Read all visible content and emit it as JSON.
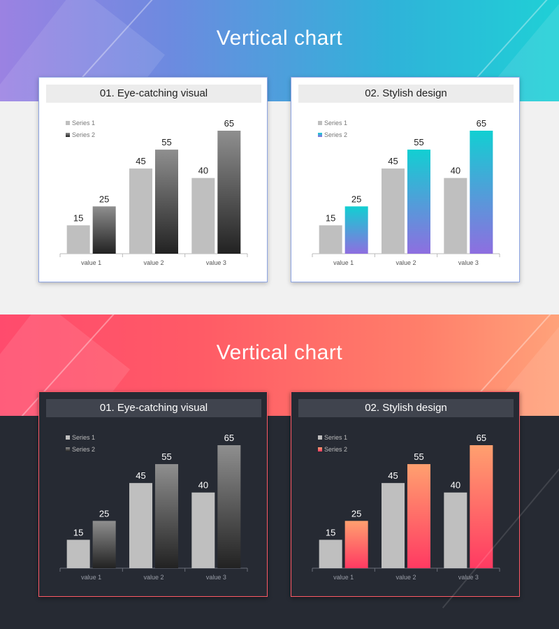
{
  "sections": [
    {
      "id": "light",
      "title": "Vertical chart",
      "cards": [
        {
          "header": "01. Eye-catching visual",
          "chart_data": {
            "type": "bar",
            "categories": [
              "value 1",
              "value 2",
              "value 3"
            ],
            "series": [
              {
                "name": "Series 1",
                "values": [
                  15,
                  45,
                  40
                ],
                "color": "#bfbfbf"
              },
              {
                "name": "Series 2",
                "values": [
                  25,
                  55,
                  65
                ],
                "gradient": [
                  "#8f8f8f",
                  "#222222"
                ]
              }
            ],
            "ylim": [
              0,
              65
            ],
            "legend": "top-left",
            "grid": false
          }
        },
        {
          "header": "02. Stylish design",
          "chart_data": {
            "type": "bar",
            "categories": [
              "value 1",
              "value 2",
              "value 3"
            ],
            "series": [
              {
                "name": "Series 1",
                "values": [
                  15,
                  45,
                  40
                ],
                "color": "#bfbfbf"
              },
              {
                "name": "Series 2",
                "values": [
                  25,
                  55,
                  65
                ],
                "gradient": [
                  "#12cfd2",
                  "#8e6ee0"
                ]
              }
            ],
            "ylim": [
              0,
              65
            ],
            "legend": "top-left",
            "grid": false
          }
        }
      ]
    },
    {
      "id": "dark",
      "title": "Vertical chart",
      "cards": [
        {
          "header": "01. Eye-catching visual",
          "chart_data": {
            "type": "bar",
            "categories": [
              "value 1",
              "value 2",
              "value 3"
            ],
            "series": [
              {
                "name": "Series 1",
                "values": [
                  15,
                  45,
                  40
                ],
                "color": "#bfbfbf"
              },
              {
                "name": "Series 2",
                "values": [
                  25,
                  55,
                  65
                ],
                "gradient": [
                  "#8f8f8f",
                  "#222222"
                ]
              }
            ],
            "ylim": [
              0,
              65
            ],
            "legend": "top-left",
            "grid": false
          }
        },
        {
          "header": "02. Stylish design",
          "chart_data": {
            "type": "bar",
            "categories": [
              "value 1",
              "value 2",
              "value 3"
            ],
            "series": [
              {
                "name": "Series 1",
                "values": [
                  15,
                  45,
                  40
                ],
                "color": "#bfbfbf"
              },
              {
                "name": "Series 2",
                "values": [
                  25,
                  55,
                  65
                ],
                "gradient": [
                  "#ffa06f",
                  "#ff3a62"
                ]
              }
            ],
            "ylim": [
              0,
              65
            ],
            "legend": "top-left",
            "grid": false
          }
        }
      ]
    }
  ],
  "theme": {
    "light": {
      "label_color": "#222222",
      "tick_color": "#555555",
      "axis_color": "#bbbbbb",
      "legend_color": "#777777"
    },
    "dark": {
      "label_color": "#ffffff",
      "tick_color": "#9a9ea8",
      "axis_color": "#6a6e78",
      "legend_color": "#bbbbbb"
    }
  }
}
